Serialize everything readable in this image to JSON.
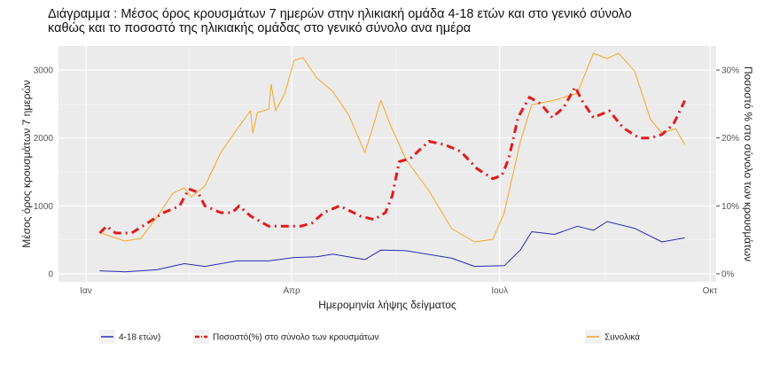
{
  "chart_data": {
    "type": "line",
    "title_line1": "Διάγραμμα    : Μέσος όρος κρουσμάτων 7 ημερών στην ηλικιακή ομάδα 4-18 ετών και στο γενικό σύνολο",
    "title_line2": "καθώς και το ποσοστό της ηλικιακής ομάδας στο γενικό σύνολο ανα ημέρα",
    "xlabel": "Ημερομηνία λήψης δείγματος",
    "ylabel": "Μέσος όρος κρουσμάτων 7 ημερών",
    "ylabel_right": "Ποσοστό % στο σύνολο των κρουσμάτων",
    "x_ticks": [
      {
        "date": "01-01",
        "label": "Ιαν"
      },
      {
        "date": "04-01",
        "label": "Απρ"
      },
      {
        "date": "07-01",
        "label": "Ιουλ"
      },
      {
        "date": "10-01",
        "label": "Οκτ"
      }
    ],
    "y_ticks": [
      0,
      1000,
      2000,
      3000
    ],
    "y_ticks_right": [
      "0%",
      "10%",
      "20%",
      "30%"
    ],
    "ylim": [
      0,
      3350
    ],
    "ylim_right": [
      0,
      33.5
    ],
    "grid": true,
    "legend_position": "bottom",
    "series": [
      {
        "name": "4-18 ετών)",
        "axis": "left",
        "color": "#2a2ab0",
        "style": "solid",
        "x": [
          "01-07",
          "01-18",
          "02-01",
          "02-13",
          "02-22",
          "03-08",
          "03-22",
          "04-02",
          "04-12",
          "04-19",
          "05-03",
          "05-10",
          "05-21",
          "06-10",
          "06-20",
          "07-03",
          "07-10",
          "07-15",
          "07-25",
          "08-04",
          "08-11",
          "08-17",
          "08-29",
          "09-10",
          "09-20"
        ],
        "y": [
          45,
          30,
          60,
          150,
          110,
          190,
          190,
          240,
          250,
          290,
          210,
          350,
          340,
          230,
          110,
          120,
          350,
          620,
          580,
          700,
          640,
          770,
          670,
          470,
          530
        ]
      },
      {
        "name": "Ποσοστό(%) στο σύνολο των κρουσμάτων",
        "axis": "right",
        "color": "#e31a1c",
        "style": "dotdash",
        "x": [
          "01-07",
          "01-10",
          "01-14",
          "01-21",
          "01-28",
          "02-04",
          "02-11",
          "02-15",
          "02-19",
          "02-22",
          "03-01",
          "03-06",
          "03-09",
          "03-14",
          "03-22",
          "04-05",
          "04-10",
          "04-15",
          "04-22",
          "05-01",
          "05-07",
          "05-12",
          "05-15",
          "05-18",
          "05-23",
          "05-31",
          "06-07",
          "06-14",
          "06-21",
          "06-28",
          "07-02",
          "07-05",
          "07-09",
          "07-14",
          "07-19",
          "07-24",
          "07-29",
          "08-03",
          "08-06",
          "08-11",
          "08-18",
          "08-24",
          "08-31",
          "09-05",
          "09-10",
          "09-15",
          "09-20"
        ],
        "y": [
          6,
          7,
          6,
          6,
          7.5,
          9,
          10,
          12.5,
          12,
          10,
          9,
          9,
          10,
          8.5,
          7,
          7,
          7.5,
          9,
          10,
          8.5,
          8,
          9,
          11.5,
          16.5,
          17,
          19.5,
          19,
          18,
          15.5,
          14,
          14.5,
          17,
          23,
          26,
          25,
          23,
          24.5,
          27.5,
          25.5,
          23,
          24,
          21.5,
          20,
          20,
          20.5,
          22,
          25.5
        ]
      },
      {
        "name": "Συνολικά",
        "axis": "left",
        "color": "#f5a623",
        "style": "solid",
        "x": [
          "01-07",
          "01-11",
          "01-18",
          "01-25",
          "02-01",
          "02-08",
          "02-13",
          "02-16",
          "02-22",
          "03-01",
          "03-08",
          "03-14",
          "03-15",
          "03-17",
          "03-22",
          "03-23",
          "03-25",
          "03-29",
          "04-02",
          "04-06",
          "04-12",
          "04-19",
          "04-26",
          "05-03",
          "05-06",
          "05-10",
          "05-14",
          "05-21",
          "05-31",
          "06-10",
          "06-20",
          "06-28",
          "07-03",
          "07-10",
          "07-15",
          "07-25",
          "08-04",
          "08-11",
          "08-17",
          "08-22",
          "08-29",
          "09-05",
          "09-10",
          "09-16",
          "09-20"
        ],
        "y": [
          613,
          560,
          482,
          521,
          834,
          1186,
          1265,
          1134,
          1290,
          1786,
          2125,
          2400,
          2073,
          2373,
          2425,
          2790,
          2400,
          2660,
          3142,
          3181,
          2881,
          2686,
          2334,
          1786,
          2099,
          2555,
          2203,
          1682,
          1226,
          665,
          469,
          508,
          900,
          1943,
          2490,
          2555,
          2660,
          3246,
          3168,
          3246,
          2986,
          2269,
          2073,
          2138,
          1903
        ]
      }
    ]
  }
}
